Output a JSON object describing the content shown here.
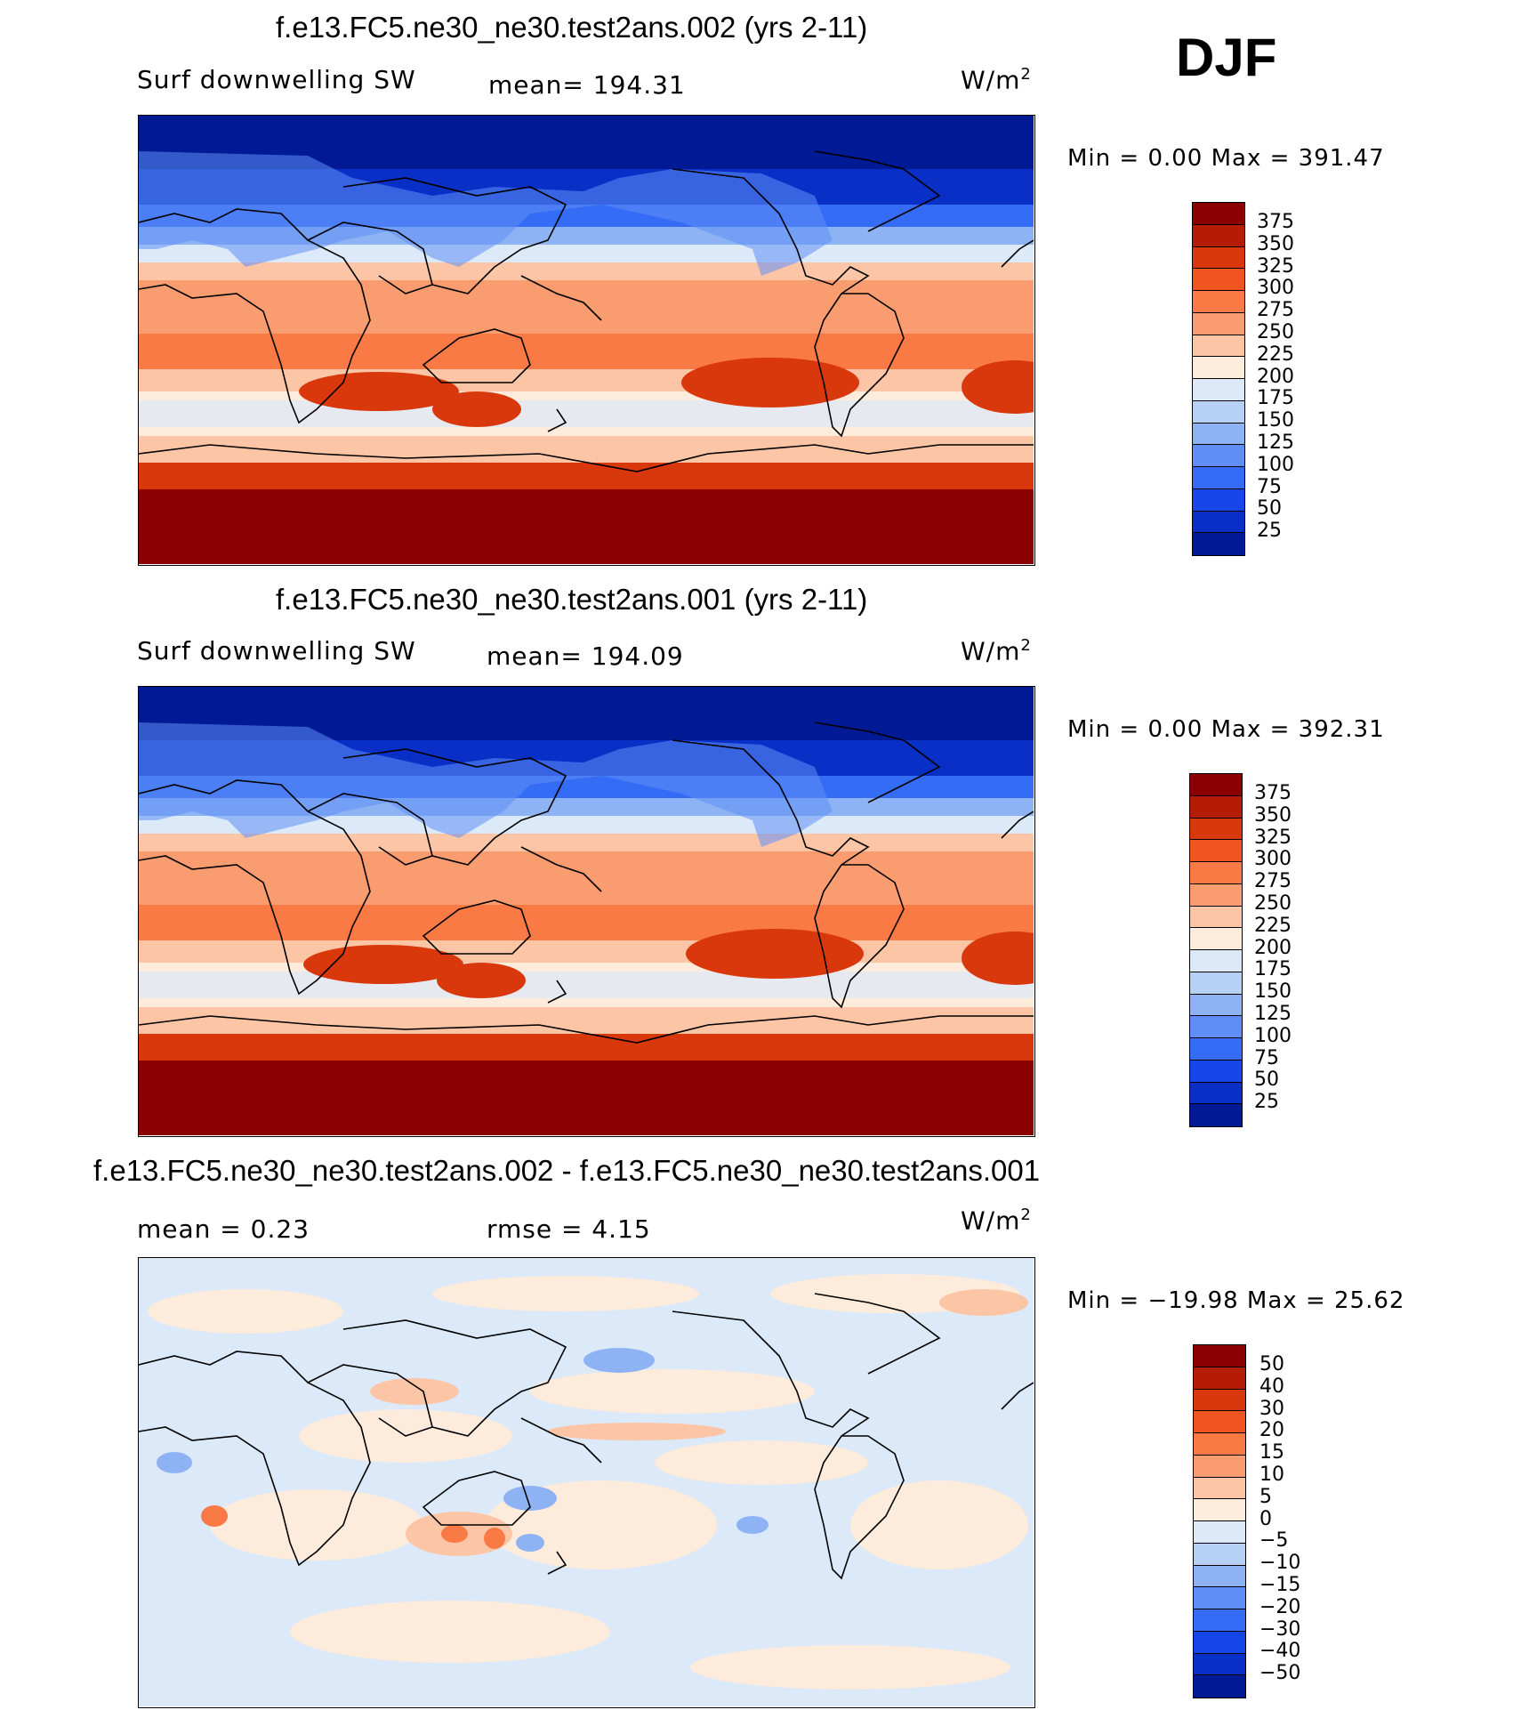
{
  "season": "DJF",
  "colors": {
    "abs_scale": [
      "#8b0000",
      "#b51c06",
      "#d9380c",
      "#f1551f",
      "#f97a45",
      "#f99d70",
      "#fcc6a6",
      "#fdebdc",
      "#dbe9f8",
      "#b7d1f4",
      "#8db3f4",
      "#5f8ef6",
      "#356cf5",
      "#1446e9",
      "#0a2fc7",
      "#001a95"
    ],
    "diff_scale": [
      "#8b0000",
      "#b51c06",
      "#d9380c",
      "#f1551f",
      "#f97a45",
      "#f99d70",
      "#fcc6a6",
      "#fdebdc",
      "#dbe9f8",
      "#b7d1f4",
      "#8db3f4",
      "#5f8ef6",
      "#356cf5",
      "#1446e9",
      "#0a2fc7",
      "#001a95"
    ]
  },
  "panels": [
    {
      "title": "f.e13.FC5.ne30_ne30.test2ans.002 (yrs 2-11)",
      "left_label": "Surf downwelling SW",
      "center_label": "mean= 194.31",
      "units_base": "W/m",
      "units_sup": "2",
      "minmax": "Min =    0.00 Max = 391.47",
      "ticks": [
        "375",
        "350",
        "325",
        "300",
        "275",
        "250",
        "225",
        "200",
        "175",
        "150",
        "125",
        "100",
        "75",
        "50",
        "25"
      ]
    },
    {
      "title": "f.e13.FC5.ne30_ne30.test2ans.001 (yrs 2-11)",
      "left_label": "Surf downwelling SW",
      "center_label": "mean= 194.09",
      "units_base": "W/m",
      "units_sup": "2",
      "minmax": "Min =    0.00 Max = 392.31",
      "ticks": [
        "375",
        "350",
        "325",
        "300",
        "275",
        "250",
        "225",
        "200",
        "175",
        "150",
        "125",
        "100",
        "75",
        "50",
        "25"
      ]
    },
    {
      "title": "f.e13.FC5.ne30_ne30.test2ans.002 - f.e13.FC5.ne30_ne30.test2ans.001",
      "left_label": "mean =    0.23",
      "center_label": "rmse =    4.15",
      "units_base": "W/m",
      "units_sup": "2",
      "minmax": "Min = −19.98 Max =   25.62",
      "ticks": [
        "50",
        "40",
        "30",
        "20",
        "15",
        "10",
        "5",
        "0",
        "−5",
        "−10",
        "−15",
        "−20",
        "−30",
        "−40",
        "−50"
      ]
    }
  ]
}
